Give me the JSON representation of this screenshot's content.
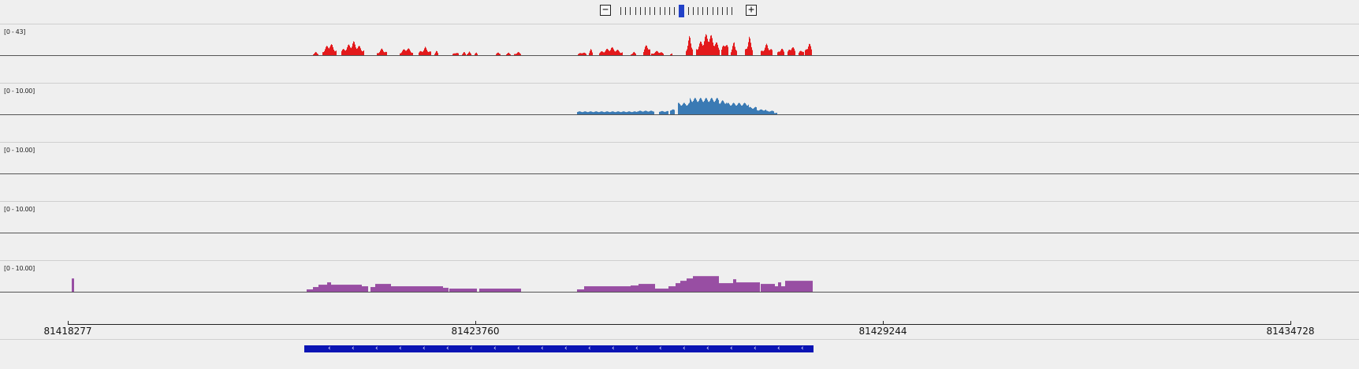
{
  "zoom": {
    "minus_label": "−",
    "plus_label": "+",
    "levels": 23,
    "current_level": 12
  },
  "tracks": [
    {
      "name": "coverage-track-1",
      "range_label": "[0 - 43]",
      "color": "#e31a1c",
      "style": "peaks",
      "regions": [
        [
          397,
          404,
          0.15
        ],
        [
          409,
          427,
          0.55
        ],
        [
          433,
          462,
          0.6
        ],
        [
          478,
          491,
          0.3
        ],
        [
          507,
          524,
          0.35
        ],
        [
          531,
          547,
          0.35
        ],
        [
          551,
          556,
          0.2
        ],
        [
          574,
          582,
          0.15
        ],
        [
          586,
          591,
          0.15
        ],
        [
          592,
          598,
          0.15
        ],
        [
          602,
          606,
          0.15
        ],
        [
          629,
          635,
          0.15
        ],
        [
          642,
          648,
          0.12
        ],
        [
          652,
          661,
          0.15
        ],
        [
          733,
          744,
          0.15
        ],
        [
          747,
          752,
          0.3
        ],
        [
          760,
          790,
          0.35
        ],
        [
          800,
          807,
          0.15
        ],
        [
          816,
          825,
          0.55
        ],
        [
          826,
          842,
          0.2
        ],
        [
          850,
          853,
          0.1
        ],
        [
          870,
          879,
          0.85
        ],
        [
          883,
          913,
          1.0
        ],
        [
          915,
          924,
          0.7
        ],
        [
          927,
          935,
          0.6
        ],
        [
          945,
          955,
          0.8
        ],
        [
          965,
          980,
          0.5
        ],
        [
          986,
          995,
          0.35
        ],
        [
          999,
          1009,
          0.45
        ],
        [
          1013,
          1020,
          0.3
        ],
        [
          1021,
          1030,
          0.6
        ]
      ]
    },
    {
      "name": "coverage-track-2",
      "range_label": "[0 - 10.00]",
      "color": "#3a7ab4",
      "style": "bars",
      "regions": [
        [
          732,
          808,
          0.18
        ],
        [
          808,
          830,
          0.22
        ],
        [
          836,
          848,
          0.2
        ],
        [
          850,
          856,
          0.3
        ],
        [
          860,
          875,
          0.7
        ],
        [
          875,
          912,
          1.0
        ],
        [
          912,
          922,
          0.85
        ],
        [
          922,
          950,
          0.7
        ],
        [
          950,
          960,
          0.45
        ],
        [
          960,
          972,
          0.3
        ],
        [
          972,
          982,
          0.22
        ],
        [
          982,
          986,
          0.1
        ]
      ]
    },
    {
      "name": "coverage-track-3",
      "range_label": "[0 - 10.00]",
      "color": "#3a7ab4",
      "style": "bars",
      "regions": []
    },
    {
      "name": "coverage-track-4",
      "range_label": "[0 - 10.00]",
      "color": "#3a7ab4",
      "style": "bars",
      "regions": []
    },
    {
      "name": "coverage-track-5",
      "range_label": "[0 - 10.00]",
      "color": "#984ea3",
      "style": "steps",
      "regions": [
        [
          91,
          94,
          0.85
        ],
        [
          389,
          397,
          0.15
        ],
        [
          397,
          404,
          0.3
        ],
        [
          404,
          415,
          0.45
        ],
        [
          415,
          420,
          0.6
        ],
        [
          420,
          459,
          0.45
        ],
        [
          459,
          467,
          0.35
        ],
        [
          470,
          476,
          0.3
        ],
        [
          476,
          496,
          0.5
        ],
        [
          496,
          562,
          0.35
        ],
        [
          562,
          569,
          0.25
        ],
        [
          570,
          605,
          0.2
        ],
        [
          608,
          661,
          0.2
        ],
        [
          732,
          741,
          0.15
        ],
        [
          741,
          748,
          0.35
        ],
        [
          748,
          800,
          0.35
        ],
        [
          800,
          810,
          0.4
        ],
        [
          810,
          831,
          0.5
        ],
        [
          831,
          848,
          0.2
        ],
        [
          848,
          857,
          0.35
        ],
        [
          857,
          863,
          0.55
        ],
        [
          863,
          871,
          0.7
        ],
        [
          871,
          879,
          0.85
        ],
        [
          879,
          912,
          1.0
        ],
        [
          912,
          930,
          0.55
        ],
        [
          930,
          934,
          0.8
        ],
        [
          934,
          964,
          0.6
        ],
        [
          965,
          983,
          0.5
        ],
        [
          983,
          987,
          0.35
        ],
        [
          987,
          991,
          0.6
        ],
        [
          991,
          996,
          0.35
        ],
        [
          996,
          1002,
          0.7
        ],
        [
          1002,
          1031,
          0.7
        ]
      ]
    }
  ],
  "ruler": {
    "ticks": [
      {
        "label": "81418277"
      },
      {
        "label": "81423760"
      },
      {
        "label": "81429244"
      },
      {
        "label": "81434728"
      }
    ]
  },
  "gene": {
    "strand": "minus",
    "arrow_glyph": "‹",
    "color": "#0a14b4"
  }
}
